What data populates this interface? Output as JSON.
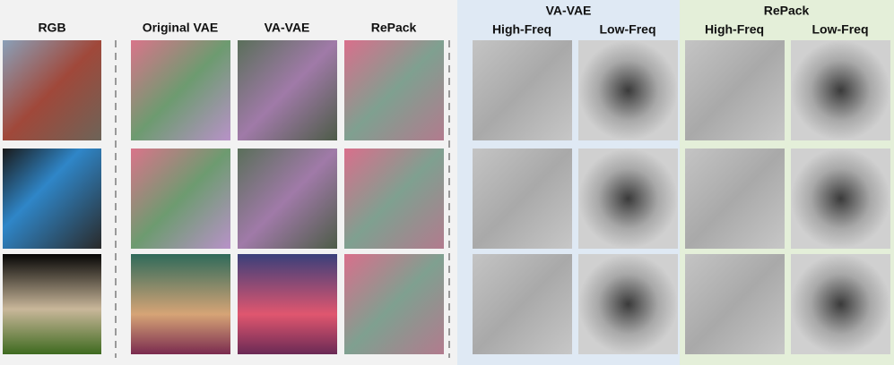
{
  "columns": {
    "rgb": "RGB",
    "original_vae": "Original VAE",
    "va_vae": "VA-VAE",
    "repack": "RePack"
  },
  "groups": [
    {
      "title": "VA-VAE",
      "subheaders": [
        "High-Freq",
        "Low-Freq"
      ]
    },
    {
      "title": "RePack",
      "subheaders": [
        "High-Freq",
        "Low-Freq"
      ]
    }
  ]
}
